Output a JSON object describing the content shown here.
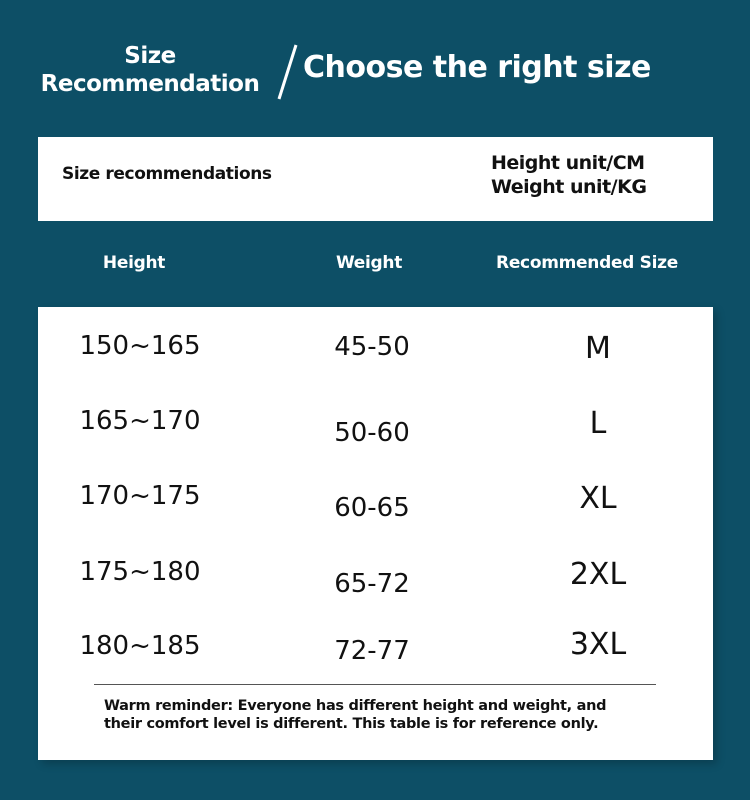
{
  "header": {
    "title_left_line1": "Size",
    "title_left_line2": "Recommendation",
    "title_right": "Choose the right size"
  },
  "card": {
    "label": "Size recommendations",
    "height_unit": "Height unit/CM",
    "weight_unit": "Weight unit/KG"
  },
  "table": {
    "columns": [
      "Height",
      "Weight",
      "Recommended Size"
    ],
    "rows": [
      [
        "150~165",
        "45-50",
        "M"
      ],
      [
        "165~170",
        "50-60",
        "L"
      ],
      [
        "170~175",
        "60-65",
        "XL"
      ],
      [
        "175~180",
        "65-72",
        "2XL"
      ],
      [
        "180~185",
        "72-77",
        "3XL"
      ]
    ]
  },
  "note": {
    "line1": "Warm reminder: Everyone has different height and weight, and",
    "line2": "their comfort level is different. This table is for reference only."
  },
  "colors": {
    "background": "#0d4f66",
    "card": "#ffffff",
    "text": "#111111"
  }
}
